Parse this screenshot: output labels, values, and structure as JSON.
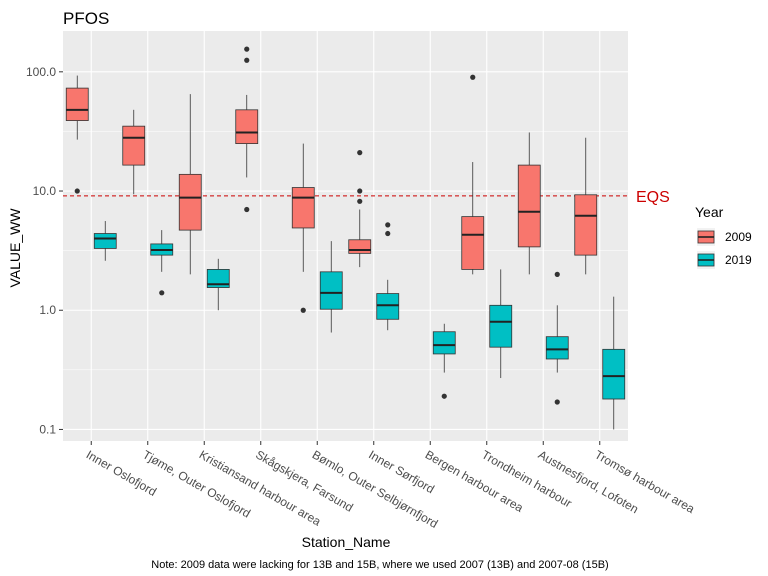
{
  "chart_data": {
    "type": "box",
    "title": "PFOS",
    "xlabel": "Station_Name",
    "ylabel": "VALUE_WW",
    "y_scale": "log10",
    "ylim": [
      0.08,
      220
    ],
    "y_ticks": [
      0.1,
      1.0,
      10.0,
      100.0
    ],
    "y_tick_labels": [
      "0.1",
      "1.0",
      "10.0",
      "100.0"
    ],
    "grid": true,
    "legend": {
      "title": "Year",
      "placement": "right",
      "entries": [
        {
          "label": "2009",
          "color": "#F8766D"
        },
        {
          "label": "2019",
          "color": "#00BFC4"
        }
      ]
    },
    "reference_line": {
      "y": 9.1,
      "label": "EQS",
      "color": "#CC0000",
      "style": "dashed"
    },
    "categories": [
      "Inner Oslofjord",
      "Tjøme, Outer Oslofjord",
      "Kristiansand harbour area",
      "Skågskjera, Farsund",
      "Bømlo, Outer Selbjørnfjord",
      "Inner Sørfjord",
      "Bergen harbour area",
      "Trondheim harbour",
      "Austnesfjord, Lofoten",
      "Tromsø harbour area"
    ],
    "series": [
      {
        "name": "2009",
        "color": "#F8766D",
        "boxes": [
          {
            "category": "Inner Oslofjord",
            "min": 27,
            "q1": 39,
            "median": 48,
            "q3": 73,
            "max": 93,
            "outliers": [
              10
            ]
          },
          {
            "category": "Tjøme, Outer Oslofjord",
            "min": 9.4,
            "q1": 16.5,
            "median": 28,
            "q3": 35,
            "max": 48,
            "outliers": []
          },
          {
            "category": "Kristiansand harbour area",
            "min": 2.0,
            "q1": 4.7,
            "median": 8.8,
            "q3": 13.8,
            "max": 65,
            "outliers": []
          },
          {
            "category": "Skågskjera, Farsund",
            "min": 13,
            "q1": 25,
            "median": 31,
            "q3": 48,
            "max": 64,
            "outliers": [
              7,
              125,
              155
            ]
          },
          {
            "category": "Bømlo, Outer Selbjørnfjord",
            "min": 2.1,
            "q1": 4.9,
            "median": 8.8,
            "q3": 10.7,
            "max": 25,
            "outliers": [
              1.0
            ]
          },
          {
            "category": "Inner Sørfjord",
            "min": 2.3,
            "q1": 3.0,
            "median": 3.2,
            "q3": 3.9,
            "max": 7.0,
            "outliers": [
              8.2,
              10.0,
              21
            ]
          },
          {
            "category": "Trondheim harbour",
            "min": 2.0,
            "q1": 2.2,
            "median": 4.3,
            "q3": 6.1,
            "max": 17.5,
            "outliers": [
              90
            ]
          },
          {
            "category": "Austnesfjord, Lofoten",
            "min": 2.0,
            "q1": 3.4,
            "median": 6.7,
            "q3": 16.5,
            "max": 31,
            "outliers": []
          },
          {
            "category": "Tromsø harbour area",
            "min": 2.0,
            "q1": 2.9,
            "median": 6.2,
            "q3": 9.3,
            "max": 28,
            "outliers": []
          }
        ]
      },
      {
        "name": "2019",
        "color": "#00BFC4",
        "boxes": [
          {
            "category": "Inner Oslofjord",
            "min": 2.6,
            "q1": 3.3,
            "median": 4.0,
            "q3": 4.4,
            "max": 5.6,
            "outliers": []
          },
          {
            "category": "Tjøme, Outer Oslofjord",
            "min": 2.1,
            "q1": 2.9,
            "median": 3.2,
            "q3": 3.6,
            "max": 4.7,
            "outliers": [
              1.4
            ]
          },
          {
            "category": "Kristiansand harbour area",
            "min": 1.0,
            "q1": 1.55,
            "median": 1.65,
            "q3": 2.2,
            "max": 2.7,
            "outliers": []
          },
          {
            "category": "Bømlo, Outer Selbjørnfjord",
            "min": 0.65,
            "q1": 1.02,
            "median": 1.4,
            "q3": 2.1,
            "max": 3.8,
            "outliers": []
          },
          {
            "category": "Inner Sørfjord",
            "min": 0.68,
            "q1": 0.84,
            "median": 1.1,
            "q3": 1.38,
            "max": 1.8,
            "outliers": [
              4.4,
              5.2
            ]
          },
          {
            "category": "Bergen harbour area",
            "min": 0.3,
            "q1": 0.43,
            "median": 0.51,
            "q3": 0.66,
            "max": 0.77,
            "outliers": [
              0.19
            ]
          },
          {
            "category": "Trondheim harbour",
            "min": 0.27,
            "q1": 0.49,
            "median": 0.8,
            "q3": 1.1,
            "max": 2.2,
            "outliers": []
          },
          {
            "category": "Austnesfjord, Lofoten",
            "min": 0.3,
            "q1": 0.39,
            "median": 0.47,
            "q3": 0.6,
            "max": 1.1,
            "outliers": [
              0.17,
              2.0
            ]
          },
          {
            "category": "Tromsø harbour area",
            "min": 0.1,
            "q1": 0.18,
            "median": 0.28,
            "q3": 0.47,
            "max": 1.3,
            "outliers": []
          }
        ]
      }
    ]
  },
  "note": "Note: 2009 data were lacking for 13B and 15B, where we used 2007 (13B) and 2007-08 (15B)"
}
